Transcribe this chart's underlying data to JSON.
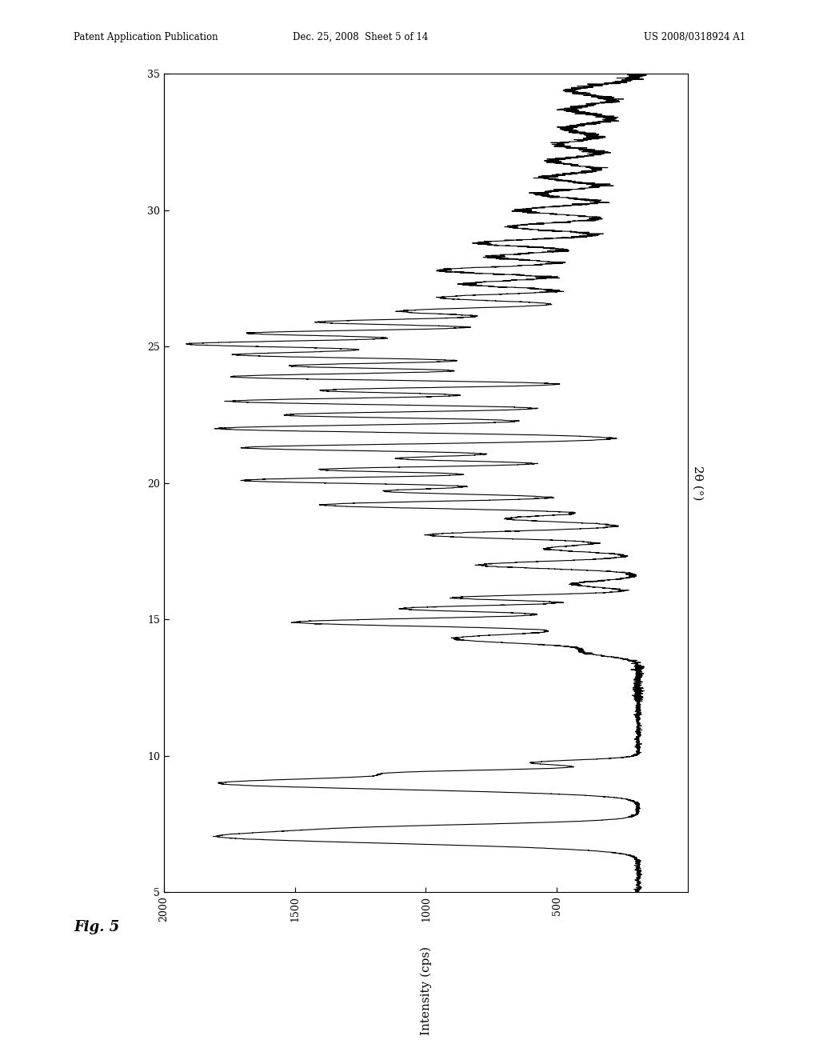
{
  "header_left": "Patent Application Publication",
  "header_center": "Dec. 25, 2008  Sheet 5 of 14",
  "header_right": "US 2008/0318924 A1",
  "fig_label": "Fig. 5",
  "xlabel_2theta": "2θ (°)",
  "ylabel_intensity": "Intensity (cps)",
  "theta_lim": [
    5,
    35
  ],
  "intensity_lim": [
    0,
    2000
  ],
  "theta_ticks": [
    5,
    10,
    15,
    20,
    25,
    30,
    35
  ],
  "intensity_ticks": [
    500,
    1000,
    1500,
    2000
  ],
  "background_color": "#ffffff",
  "line_color": "#000000",
  "line_width": 0.8
}
